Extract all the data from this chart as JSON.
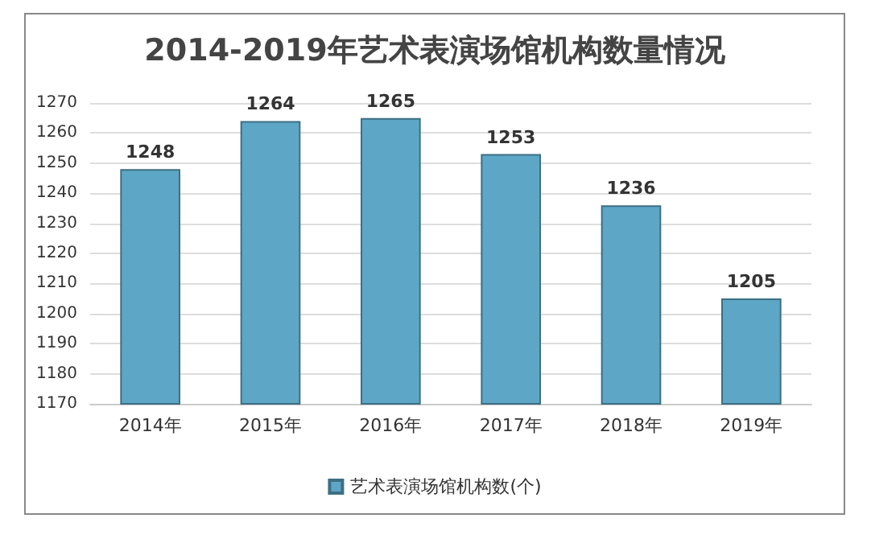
{
  "chart_data": {
    "type": "bar",
    "title": "2014-2019年艺术表演场馆机构数量情况",
    "categories": [
      "2014年",
      "2015年",
      "2016年",
      "2017年",
      "2018年",
      "2019年"
    ],
    "series": [
      {
        "name": "艺术表演场馆机构数(个)",
        "color": "#5ea6c6",
        "values": [
          1248,
          1264,
          1265,
          1253,
          1236,
          1205
        ]
      }
    ],
    "ylim": [
      1170,
      1270
    ],
    "yticks": [
      1170,
      1180,
      1190,
      1200,
      1210,
      1220,
      1230,
      1240,
      1250,
      1260,
      1270
    ],
    "grid": "y",
    "legend": "bottom",
    "data_labels": true
  }
}
